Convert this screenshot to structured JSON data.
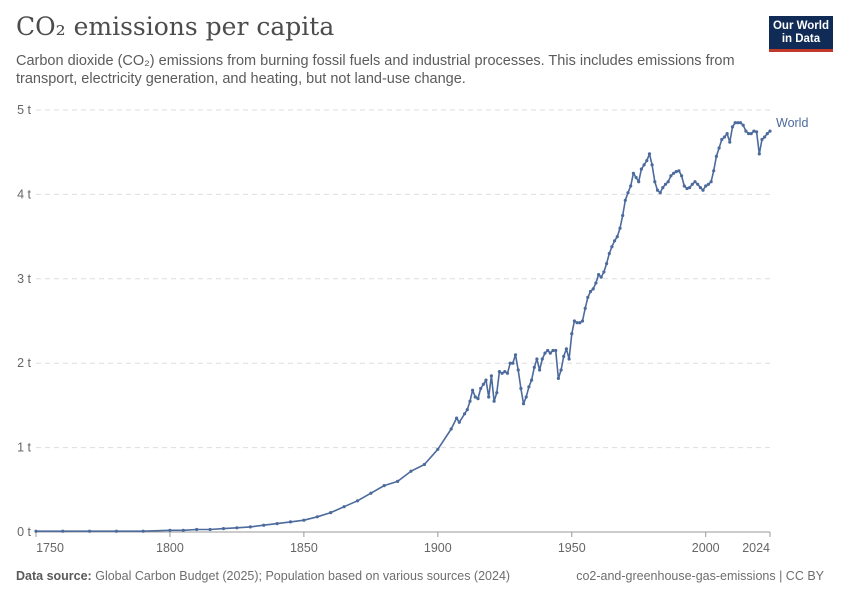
{
  "header": {
    "title": "CO₂ emissions per capita",
    "subtitle": "Carbon dioxide (CO₂) emissions from burning fossil fuels and industrial processes. This includes emissions from transport, electricity generation, and heating, but not land-use change.",
    "logo_line1": "Our World",
    "logo_line2": "in Data"
  },
  "footer": {
    "source_label": "Data source:",
    "source_text": "Global Carbon Budget (2025); Population based on various sources (2024)",
    "slug": "co2-and-greenhouse-gas-emissions | CC BY"
  },
  "colors": {
    "series": "#4c6a9c",
    "grid": "#dddddd",
    "axis": "#666666",
    "logo_bg": "#0f2b56",
    "logo_accent": "#c0392b"
  },
  "chart_data": {
    "type": "line",
    "xlim": [
      1750,
      2024
    ],
    "ylim": [
      0,
      5
    ],
    "x_ticks": [
      {
        "value": 1750,
        "label": "1750"
      },
      {
        "value": 1800,
        "label": "1800"
      },
      {
        "value": 1850,
        "label": "1850"
      },
      {
        "value": 1900,
        "label": "1900"
      },
      {
        "value": 1950,
        "label": "1950"
      },
      {
        "value": 2000,
        "label": "2000"
      },
      {
        "value": 2024,
        "label": "2024"
      }
    ],
    "y_ticks": [
      {
        "value": 0,
        "label": "0 t"
      },
      {
        "value": 1,
        "label": "1 t"
      },
      {
        "value": 2,
        "label": "2 t"
      },
      {
        "value": 3,
        "label": "3 t"
      },
      {
        "value": 4,
        "label": "4 t"
      },
      {
        "value": 5,
        "label": "5 t"
      }
    ],
    "grid": true,
    "series": [
      {
        "name": "World",
        "points": [
          [
            1750,
            0.01
          ],
          [
            1760,
            0.01
          ],
          [
            1770,
            0.01
          ],
          [
            1780,
            0.01
          ],
          [
            1790,
            0.01
          ],
          [
            1800,
            0.02
          ],
          [
            1805,
            0.02
          ],
          [
            1810,
            0.03
          ],
          [
            1815,
            0.03
          ],
          [
            1820,
            0.04
          ],
          [
            1825,
            0.05
          ],
          [
            1830,
            0.06
          ],
          [
            1835,
            0.08
          ],
          [
            1840,
            0.1
          ],
          [
            1845,
            0.12
          ],
          [
            1850,
            0.14
          ],
          [
            1855,
            0.18
          ],
          [
            1860,
            0.23
          ],
          [
            1865,
            0.3
          ],
          [
            1870,
            0.37
          ],
          [
            1875,
            0.46
          ],
          [
            1880,
            0.55
          ],
          [
            1885,
            0.6
          ],
          [
            1890,
            0.72
          ],
          [
            1895,
            0.8
          ],
          [
            1900,
            0.98
          ],
          [
            1905,
            1.22
          ],
          [
            1907,
            1.35
          ],
          [
            1908,
            1.3
          ],
          [
            1910,
            1.4
          ],
          [
            1911,
            1.45
          ],
          [
            1912,
            1.55
          ],
          [
            1913,
            1.68
          ],
          [
            1914,
            1.6
          ],
          [
            1915,
            1.58
          ],
          [
            1916,
            1.7
          ],
          [
            1917,
            1.75
          ],
          [
            1918,
            1.8
          ],
          [
            1919,
            1.6
          ],
          [
            1920,
            1.85
          ],
          [
            1921,
            1.55
          ],
          [
            1922,
            1.65
          ],
          [
            1923,
            1.9
          ],
          [
            1924,
            1.88
          ],
          [
            1925,
            1.9
          ],
          [
            1926,
            1.88
          ],
          [
            1927,
            2.0
          ],
          [
            1928,
            2.0
          ],
          [
            1929,
            2.1
          ],
          [
            1930,
            1.92
          ],
          [
            1931,
            1.7
          ],
          [
            1932,
            1.52
          ],
          [
            1933,
            1.6
          ],
          [
            1934,
            1.72
          ],
          [
            1935,
            1.8
          ],
          [
            1936,
            1.95
          ],
          [
            1937,
            2.05
          ],
          [
            1938,
            1.92
          ],
          [
            1939,
            2.05
          ],
          [
            1940,
            2.12
          ],
          [
            1941,
            2.15
          ],
          [
            1942,
            2.12
          ],
          [
            1943,
            2.15
          ],
          [
            1944,
            2.15
          ],
          [
            1945,
            1.82
          ],
          [
            1946,
            1.92
          ],
          [
            1947,
            2.08
          ],
          [
            1948,
            2.17
          ],
          [
            1949,
            2.05
          ],
          [
            1950,
            2.35
          ],
          [
            1951,
            2.5
          ],
          [
            1952,
            2.48
          ],
          [
            1953,
            2.48
          ],
          [
            1954,
            2.5
          ],
          [
            1955,
            2.65
          ],
          [
            1956,
            2.78
          ],
          [
            1957,
            2.85
          ],
          [
            1958,
            2.88
          ],
          [
            1959,
            2.95
          ],
          [
            1960,
            3.05
          ],
          [
            1961,
            3.02
          ],
          [
            1962,
            3.08
          ],
          [
            1963,
            3.18
          ],
          [
            1964,
            3.3
          ],
          [
            1965,
            3.38
          ],
          [
            1966,
            3.45
          ],
          [
            1967,
            3.5
          ],
          [
            1968,
            3.6
          ],
          [
            1969,
            3.75
          ],
          [
            1970,
            3.93
          ],
          [
            1971,
            4.02
          ],
          [
            1972,
            4.1
          ],
          [
            1973,
            4.25
          ],
          [
            1974,
            4.2
          ],
          [
            1975,
            4.15
          ],
          [
            1976,
            4.3
          ],
          [
            1977,
            4.35
          ],
          [
            1978,
            4.4
          ],
          [
            1979,
            4.48
          ],
          [
            1980,
            4.35
          ],
          [
            1981,
            4.15
          ],
          [
            1982,
            4.05
          ],
          [
            1983,
            4.02
          ],
          [
            1984,
            4.08
          ],
          [
            1985,
            4.12
          ],
          [
            1986,
            4.15
          ],
          [
            1987,
            4.22
          ],
          [
            1988,
            4.25
          ],
          [
            1989,
            4.27
          ],
          [
            1990,
            4.28
          ],
          [
            1991,
            4.22
          ],
          [
            1992,
            4.1
          ],
          [
            1993,
            4.07
          ],
          [
            1994,
            4.08
          ],
          [
            1995,
            4.12
          ],
          [
            1996,
            4.15
          ],
          [
            1997,
            4.12
          ],
          [
            1998,
            4.08
          ],
          [
            1999,
            4.05
          ],
          [
            2000,
            4.1
          ],
          [
            2001,
            4.12
          ],
          [
            2002,
            4.15
          ],
          [
            2003,
            4.28
          ],
          [
            2004,
            4.45
          ],
          [
            2005,
            4.55
          ],
          [
            2006,
            4.65
          ],
          [
            2007,
            4.68
          ],
          [
            2008,
            4.72
          ],
          [
            2009,
            4.62
          ],
          [
            2010,
            4.8
          ],
          [
            2011,
            4.85
          ],
          [
            2012,
            4.85
          ],
          [
            2013,
            4.85
          ],
          [
            2014,
            4.82
          ],
          [
            2015,
            4.75
          ],
          [
            2016,
            4.72
          ],
          [
            2017,
            4.72
          ],
          [
            2018,
            4.75
          ],
          [
            2019,
            4.74
          ],
          [
            2020,
            4.48
          ],
          [
            2021,
            4.65
          ],
          [
            2022,
            4.68
          ],
          [
            2023,
            4.72
          ],
          [
            2024,
            4.75
          ]
        ]
      }
    ]
  }
}
